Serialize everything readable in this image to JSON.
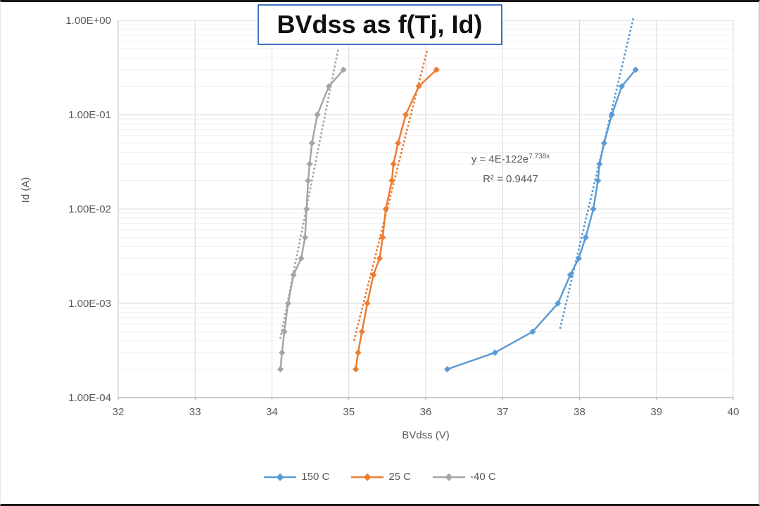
{
  "chart_data": {
    "type": "line",
    "title": "BVdss as f(Tj, Id)",
    "xlabel": "BVdss (V)",
    "ylabel": "Id (A)",
    "x_ticks": [
      32,
      33,
      34,
      35,
      36,
      37,
      38,
      39,
      40
    ],
    "xlim": [
      32,
      40
    ],
    "y_scale": "log",
    "y_ticks": [
      "1.00E+00",
      "1.00E-01",
      "1.00E-02",
      "1.00E-03",
      "1.00E-04"
    ],
    "ylim": [
      0.0001,
      1.0
    ],
    "grid": "major and minor log gridlines on",
    "legend_position": "bottom",
    "series": [
      {
        "name": "150 C",
        "color": "#5B9BD5",
        "marker": "diamond",
        "points": [
          [
            36.28,
            0.0002
          ],
          [
            36.9,
            0.0003
          ],
          [
            37.39,
            0.0005
          ],
          [
            37.72,
            0.001
          ],
          [
            37.88,
            0.002
          ],
          [
            37.99,
            0.003
          ],
          [
            38.08,
            0.005
          ],
          [
            38.18,
            0.01
          ],
          [
            38.24,
            0.02
          ],
          [
            38.26,
            0.03
          ],
          [
            38.32,
            0.05
          ],
          [
            38.42,
            0.1
          ],
          [
            38.55,
            0.2
          ],
          [
            38.73,
            0.3
          ]
        ]
      },
      {
        "name": "25 C",
        "color": "#ED7D31",
        "marker": "diamond",
        "points": [
          [
            35.09,
            0.0002
          ],
          [
            35.12,
            0.0003
          ],
          [
            35.17,
            0.0005
          ],
          [
            35.24,
            0.001
          ],
          [
            35.32,
            0.002
          ],
          [
            35.4,
            0.003
          ],
          [
            35.44,
            0.005
          ],
          [
            35.48,
            0.01
          ],
          [
            35.56,
            0.02
          ],
          [
            35.58,
            0.03
          ],
          [
            35.64,
            0.05
          ],
          [
            35.74,
            0.1
          ],
          [
            35.91,
            0.2
          ],
          [
            36.14,
            0.3
          ]
        ]
      },
      {
        "name": "-40 C",
        "color": "#A5A5A5",
        "marker": "diamond",
        "points": [
          [
            34.11,
            0.0002
          ],
          [
            34.13,
            0.0003
          ],
          [
            34.16,
            0.0005
          ],
          [
            34.21,
            0.001
          ],
          [
            34.28,
            0.002
          ],
          [
            34.38,
            0.003
          ],
          [
            34.43,
            0.005
          ],
          [
            34.45,
            0.01
          ],
          [
            34.47,
            0.02
          ],
          [
            34.49,
            0.03
          ],
          [
            34.52,
            0.05
          ],
          [
            34.59,
            0.1
          ],
          [
            34.74,
            0.2
          ],
          [
            34.93,
            0.3
          ]
        ]
      }
    ],
    "trendlines": [
      {
        "series": "150 C",
        "color": "#5B9BD5",
        "style": "round-dot",
        "from": [
          37.75,
          0.00055
        ],
        "to": [
          38.7,
          1.05
        ]
      },
      {
        "series": "25 C",
        "color": "#ED7D31",
        "style": "round-dot",
        "from": [
          35.07,
          0.00041
        ],
        "to": [
          36.02,
          0.49
        ]
      },
      {
        "series": "-40 C",
        "color": "#A5A5A5",
        "style": "round-dot",
        "from": [
          34.11,
          0.00043
        ],
        "to": [
          34.86,
          0.49
        ]
      }
    ],
    "trend_label": {
      "equation_base": "y = 4E-122e",
      "equation_exponent": "7.738x",
      "r_squared": "R² = 0.9447"
    }
  },
  "colors": {
    "title_border": "#4472C4",
    "axis_text": "#595959",
    "grid_major": "#D9D9D9",
    "grid_minor": "#EFEFEF",
    "axis_line": "#A6A6A6"
  }
}
